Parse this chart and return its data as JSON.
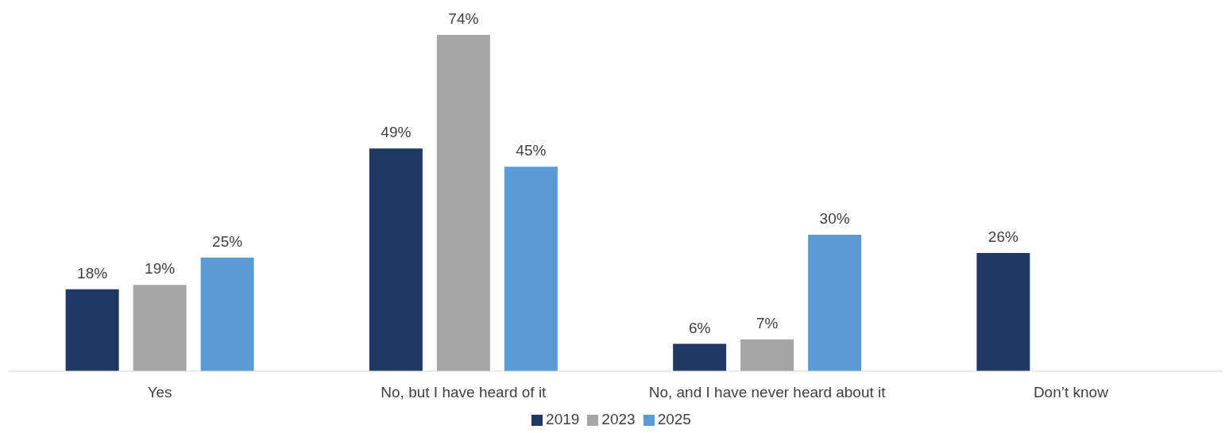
{
  "chart_data": {
    "type": "bar",
    "categories": [
      "Yes",
      "No, but I have heard of it",
      "No, and I have never heard about it",
      "Don’t know"
    ],
    "series": [
      {
        "name": "2019",
        "color": "#1f3864",
        "values": [
          18,
          49,
          6,
          26
        ],
        "value_labels": [
          "18%",
          "49%",
          "6%",
          "26%"
        ]
      },
      {
        "name": "2023",
        "color": "#a5a5a5",
        "values": [
          19,
          74,
          7,
          null
        ],
        "value_labels": [
          "19%",
          "74%",
          "7%",
          null
        ]
      },
      {
        "name": "2025",
        "color": "#5b9bd5",
        "values": [
          25,
          45,
          30,
          null
        ],
        "value_labels": [
          "25%",
          "45%",
          "30%",
          null
        ]
      }
    ],
    "legend": "bottom",
    "grid": false
  }
}
